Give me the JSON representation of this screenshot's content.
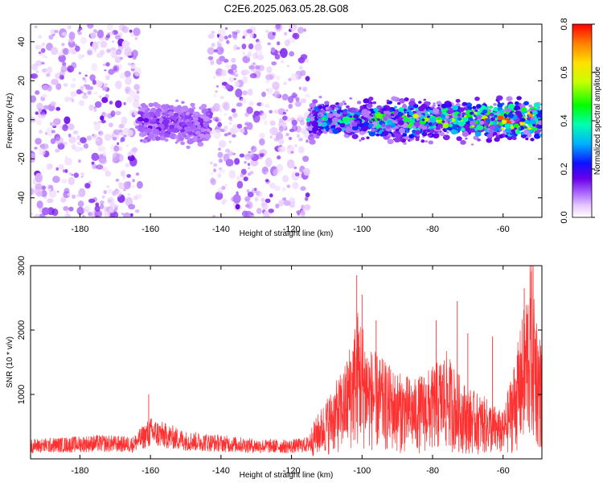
{
  "title": "C2E6.2025.063.05.28.G08",
  "chart_data": [
    {
      "type": "heatmap",
      "title": "",
      "xlabel": "Height of straight line (km)",
      "ylabel": "Frequency (Hz)",
      "xlim": [
        -194,
        -49
      ],
      "ylim": [
        -50,
        49
      ],
      "xticks": [
        -180,
        -160,
        -140,
        -120,
        -100,
        -80,
        -60
      ],
      "yticks": [
        -40,
        -20,
        0,
        20,
        40
      ],
      "colorbar": {
        "label": "Normalized spectral amplitude",
        "range": [
          0,
          0.8
        ],
        "ticks": [
          0,
          0.2,
          0.4,
          0.6,
          0.8
        ],
        "colors": [
          "#ffffff",
          "#e8c8ff",
          "#b070ff",
          "#6a00e8",
          "#1010ff",
          "#00b0ff",
          "#00ffb0",
          "#00ff00",
          "#c8ff00",
          "#ffe000",
          "#ff8000",
          "#ff0000"
        ]
      },
      "bands": [
        {
          "x_range": [
            -194,
            -163
          ],
          "freq_range": [
            -50,
            49
          ],
          "density": "scattered"
        },
        {
          "x_range": [
            -163,
            -143
          ],
          "freq_center": -2,
          "peak": 0.15
        },
        {
          "x_range": [
            -143,
            -115
          ],
          "freq_range": [
            -50,
            49
          ],
          "density": "scattered"
        },
        {
          "x_range": [
            -115,
            -49
          ],
          "freq_center": 0,
          "peak": 0.8
        }
      ]
    },
    {
      "type": "line",
      "title": "",
      "xlabel": "Height of straight line (km)",
      "ylabel": "SNR (10 * v/v)",
      "xlim": [
        -194,
        -49
      ],
      "ylim": [
        0,
        3000
      ],
      "xticks": [
        -180,
        -160,
        -140,
        -120,
        -100,
        -80,
        -60
      ],
      "yticks": [
        1000,
        2000,
        3000
      ],
      "series": [
        {
          "color": "#ff3030",
          "x": [
            -194,
            -185,
            -175,
            -165,
            -160,
            -150,
            -140,
            -130,
            -120,
            -115,
            -110,
            -105,
            -101,
            -98,
            -95,
            -90,
            -85,
            -80,
            -76,
            -73,
            -70,
            -65,
            -60,
            -56,
            -54,
            -52,
            -50,
            -49
          ],
          "y": [
            250,
            270,
            300,
            280,
            520,
            350,
            300,
            250,
            240,
            280,
            600,
            900,
            1500,
            1100,
            1000,
            850,
            780,
            900,
            1050,
            850,
            700,
            600,
            450,
            1100,
            1500,
            2000,
            1300,
            1100
          ],
          "peaks": [
            {
              "x": -160.5,
              "y": 1000
            },
            {
              "x": -101.5,
              "y": 2850
            },
            {
              "x": -100,
              "y": 2550
            },
            {
              "x": -96,
              "y": 2150
            },
            {
              "x": -79,
              "y": 2150
            },
            {
              "x": -73,
              "y": 2450
            },
            {
              "x": -70,
              "y": 1950
            },
            {
              "x": -63,
              "y": 1900
            },
            {
              "x": -54,
              "y": 2650
            },
            {
              "x": -51.5,
              "y": 3000
            }
          ]
        }
      ]
    }
  ]
}
